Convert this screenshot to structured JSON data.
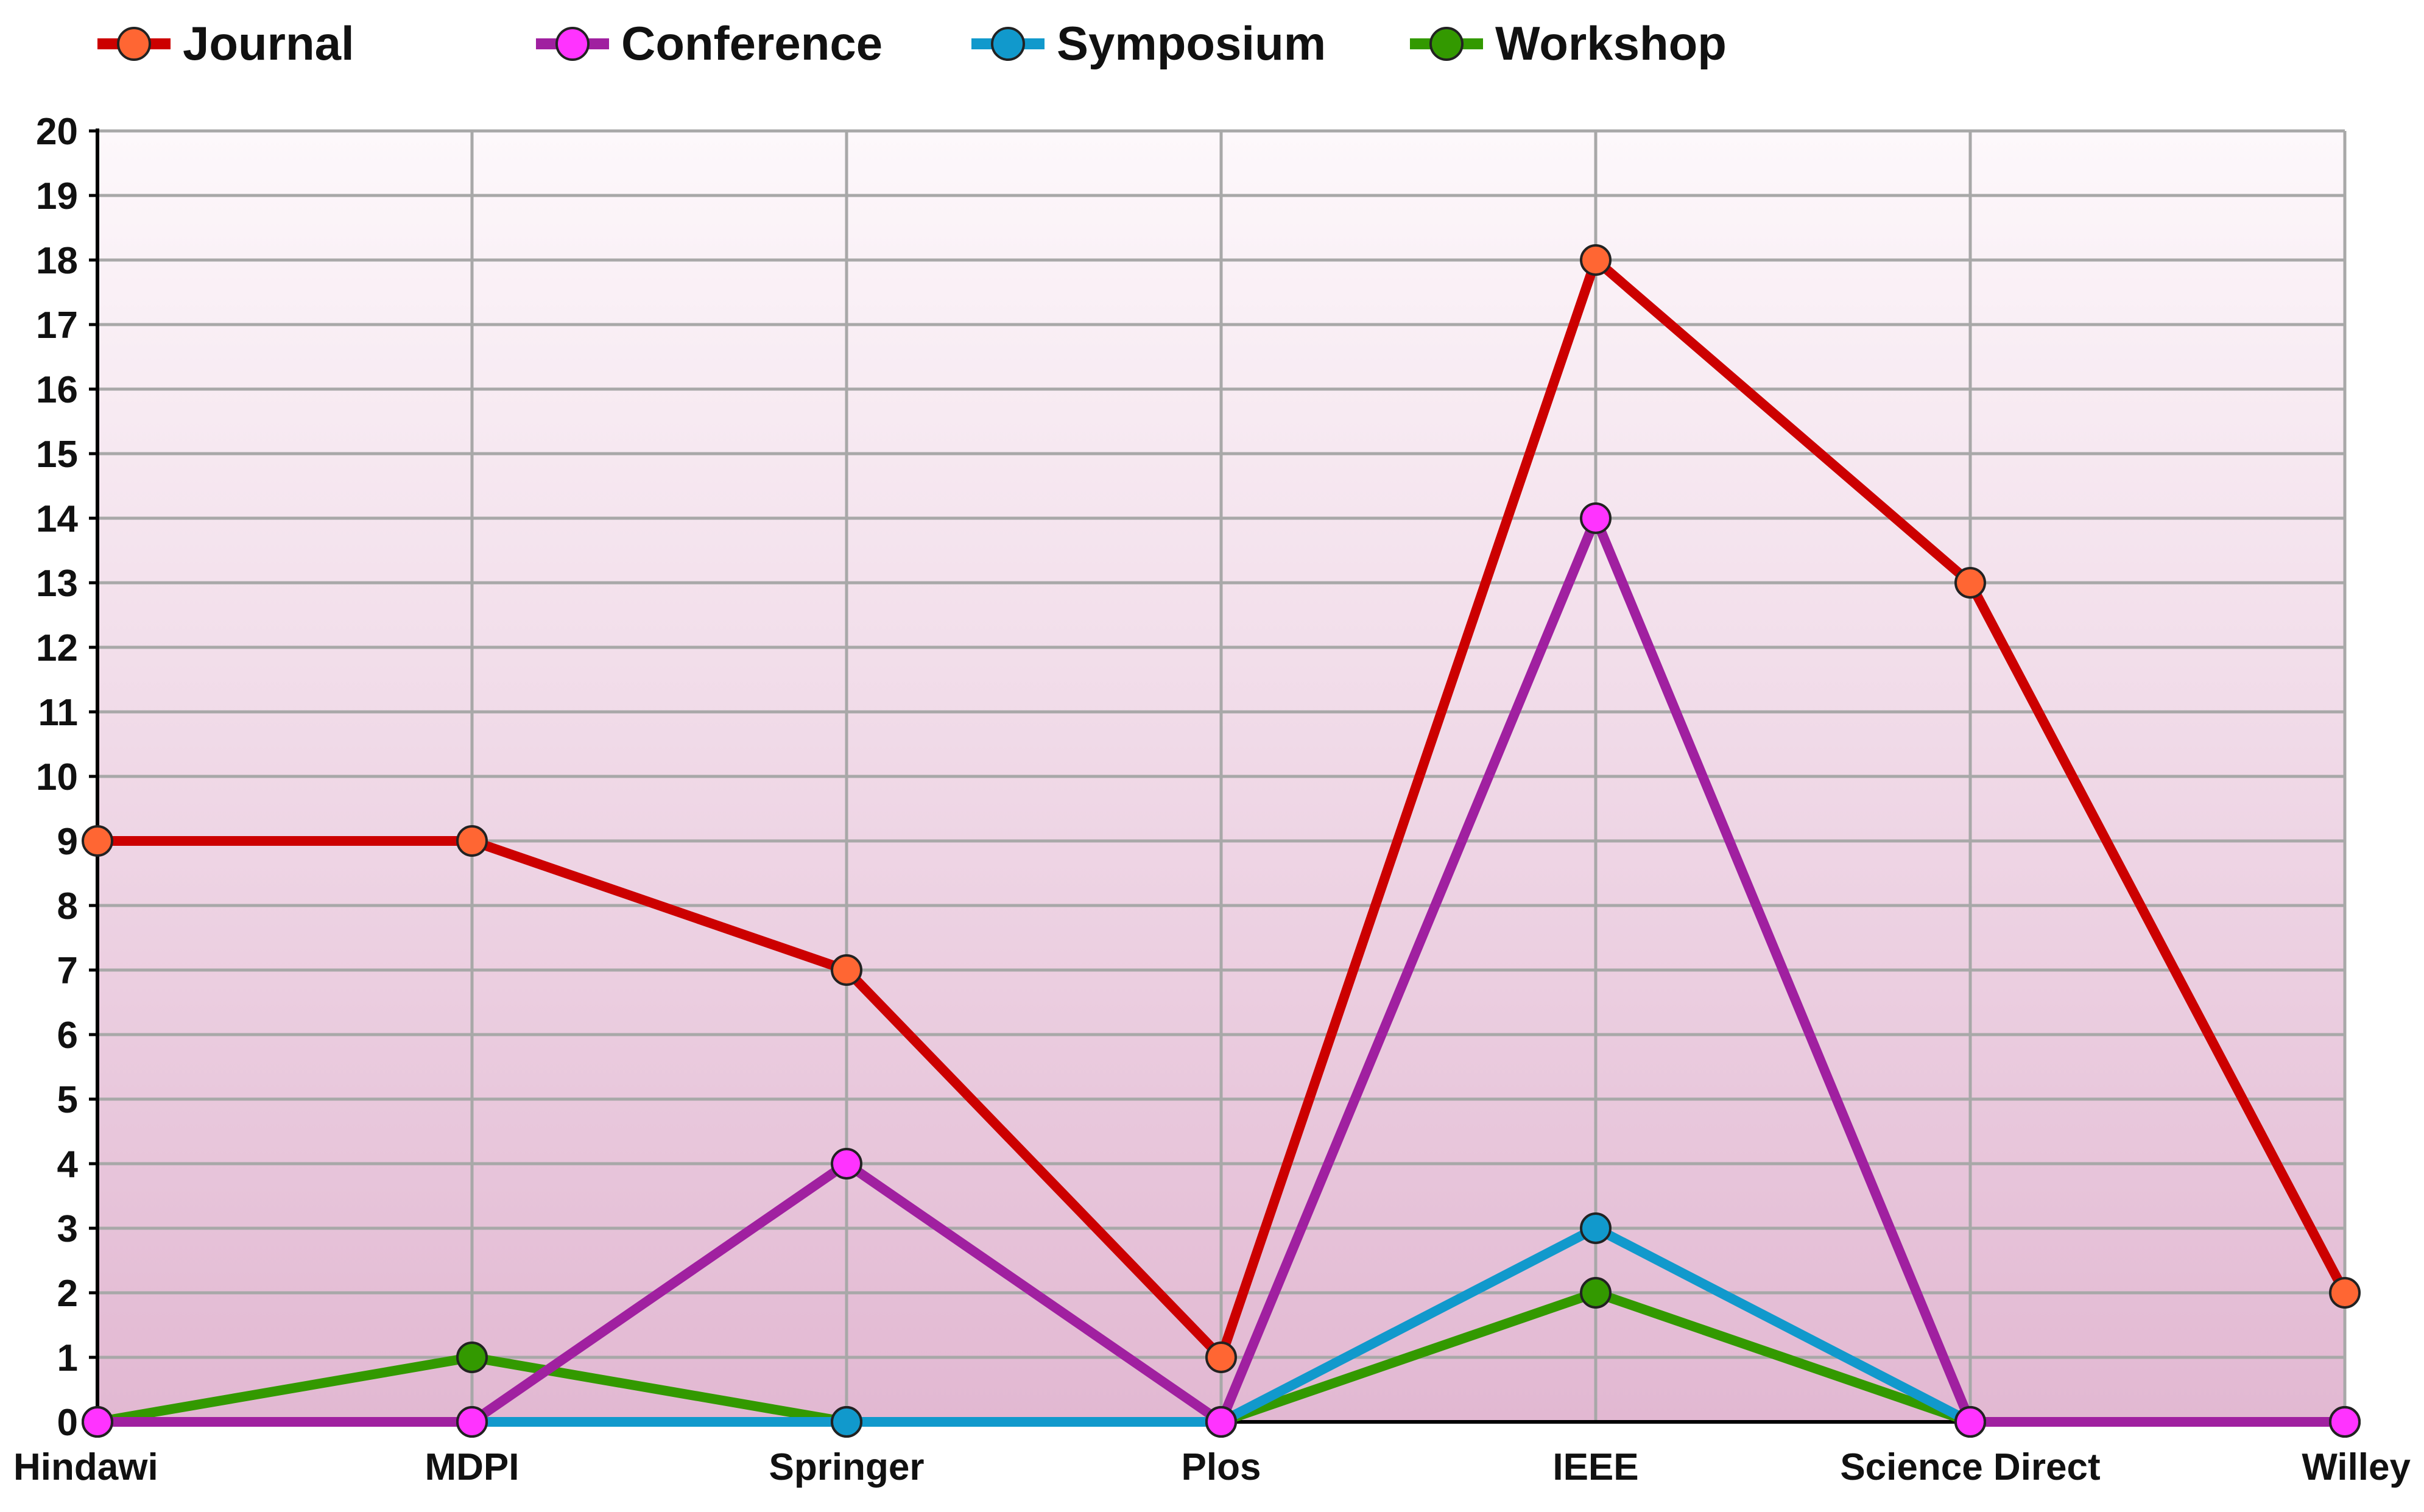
{
  "chart_data": {
    "type": "line",
    "categories": [
      "Hindawi",
      "MDPI",
      "Springer",
      "Plos",
      "IEEE",
      "Science Direct",
      "Willey"
    ],
    "ylim": [
      0,
      20
    ],
    "yticks": [
      0,
      1,
      2,
      3,
      4,
      5,
      6,
      7,
      8,
      9,
      10,
      11,
      12,
      13,
      14,
      15,
      16,
      17,
      18,
      19,
      20
    ],
    "grid": true,
    "legend_position": "top-left",
    "title": "",
    "xlabel": "",
    "ylabel": "",
    "series": [
      {
        "name": "Journal",
        "line_color": "#cc0000",
        "marker_color": "#ff6633",
        "values": [
          9,
          9,
          7,
          1,
          18,
          13,
          2
        ]
      },
      {
        "name": "Conference",
        "line_color": "#a020a0",
        "marker_color": "#ff33ff",
        "values": [
          0,
          0,
          4,
          0,
          14,
          0,
          0
        ]
      },
      {
        "name": "Symposium",
        "line_color": "#1199cc",
        "marker_color": "#1199cc",
        "values": [
          0,
          0,
          0,
          0,
          3,
          0,
          0
        ]
      },
      {
        "name": "Workshop",
        "line_color": "#339900",
        "marker_color": "#339900",
        "values": [
          0,
          1,
          0,
          0,
          2,
          0,
          0
        ]
      }
    ]
  }
}
